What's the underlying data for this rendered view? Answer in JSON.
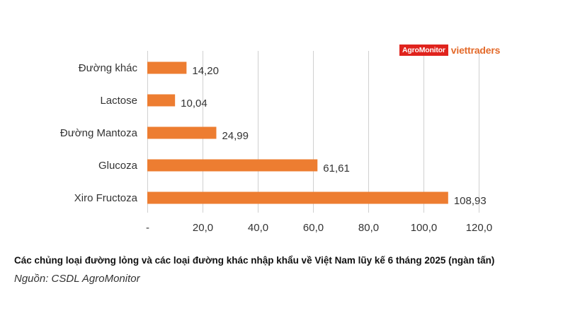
{
  "chart_data": {
    "type": "bar",
    "orientation": "horizontal",
    "categories": [
      "Đường khác",
      "Lactose",
      "Đường Mantoza",
      "Glucoza",
      "Xiro Fructoza"
    ],
    "values": [
      14.2,
      10.04,
      24.99,
      61.61,
      108.93
    ],
    "data_labels": [
      "14,20",
      "10,04",
      "24,99",
      "61,61",
      "108,93"
    ],
    "xlim": [
      0,
      120
    ],
    "x_ticks": [
      0,
      20,
      40,
      60,
      80,
      100,
      120
    ],
    "x_tick_labels": [
      "-",
      "20,0",
      "40,0",
      "60,0",
      "80,0",
      "100,0",
      "120,0"
    ],
    "grid": true,
    "bar_color": "#ed7d31"
  },
  "caption": "Các chủng loại đường lỏng và các loại đường khác nhập khẩu về Việt Nam lũy kế 6 tháng 2025 (ngàn tấn)",
  "source": "Nguồn: CSDL AgroMonitor",
  "logo": {
    "part1": "AgroMonitor",
    "part2": "viettraders",
    "color1": "#e0231d",
    "color2": "#e36a2a"
  }
}
